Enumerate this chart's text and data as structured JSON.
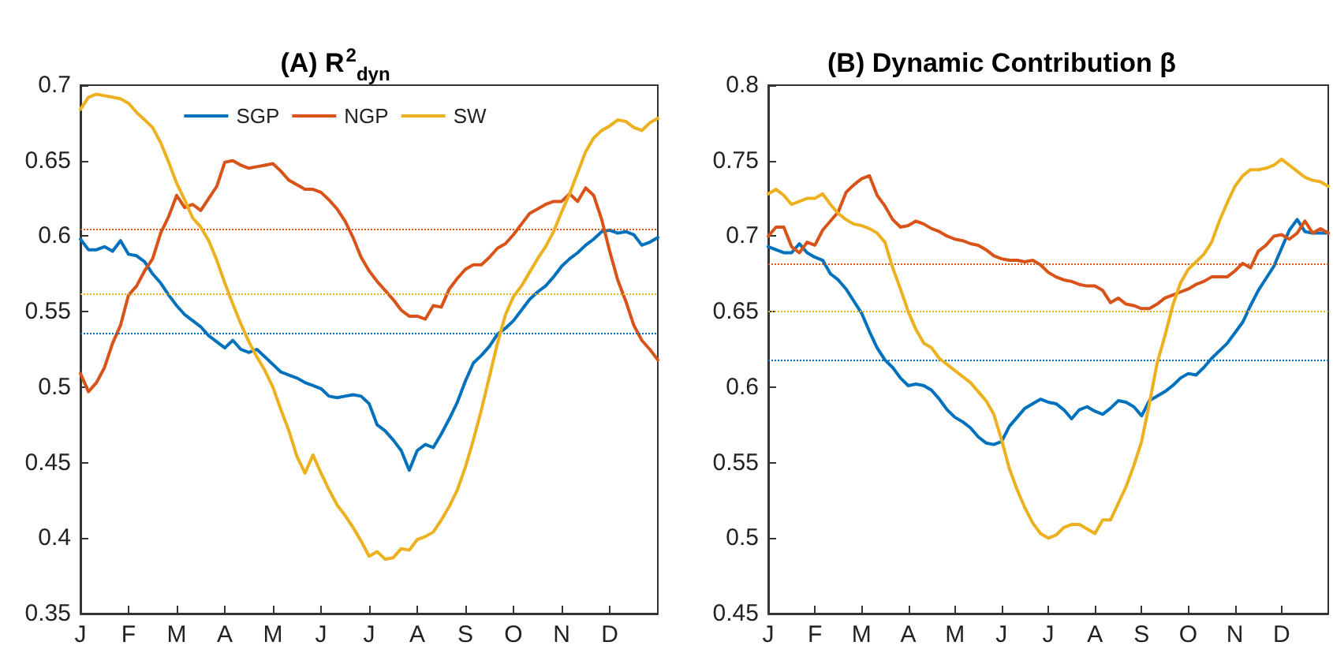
{
  "chart_data": [
    {
      "type": "line",
      "title": "(A) R$^{2}$$_{dyn}$",
      "categories": [
        "J",
        null,
        null,
        null,
        null,
        null,
        "F",
        null,
        null,
        null,
        null,
        null,
        "M",
        null,
        null,
        null,
        null,
        null,
        "A",
        null,
        null,
        null,
        null,
        null,
        "M",
        null,
        null,
        null,
        null,
        null,
        "J",
        null,
        null,
        null,
        null,
        null,
        "J",
        null,
        null,
        null,
        null,
        null,
        "A",
        null,
        null,
        null,
        null,
        null,
        "S",
        null,
        null,
        null,
        null,
        null,
        "O",
        null,
        null,
        null,
        null,
        null,
        "N",
        null,
        null,
        null,
        null,
        null,
        "D",
        null,
        null,
        null,
        null,
        null,
        null
      ],
      "ylim": [
        0.35,
        0.7
      ],
      "yticks": [
        0.35,
        0.4,
        0.45,
        0.5,
        0.55,
        0.6,
        0.65,
        0.7
      ],
      "grid": false,
      "legend": "top",
      "line_style": "solid",
      "ref_lines": [
        {
          "axis": "y",
          "value": 0.605,
          "label": null,
          "color": "#d95319",
          "line_style": "dotted"
        },
        {
          "axis": "y",
          "value": 0.562,
          "label": null,
          "color": "#edb120",
          "line_style": "dotted"
        },
        {
          "axis": "y",
          "value": 0.536,
          "label": null,
          "color": "#0072bd",
          "line_style": "dotted"
        }
      ],
      "series": [
        {
          "name": "SGP",
          "color": "#0072bd",
          "values": [
            0.598,
            0.591,
            0.591,
            0.593,
            0.59,
            0.597,
            0.588,
            0.587,
            0.583,
            0.575,
            0.569,
            0.561,
            0.554,
            0.548,
            0.544,
            0.54,
            0.534,
            0.53,
            0.526,
            0.531,
            0.525,
            0.523,
            0.525,
            0.52,
            0.515,
            0.51,
            0.508,
            0.506,
            0.503,
            0.501,
            0.499,
            0.494,
            0.493,
            0.494,
            0.495,
            0.494,
            0.489,
            0.475,
            0.471,
            0.465,
            0.458,
            0.445,
            0.458,
            0.462,
            0.46,
            0.469,
            0.479,
            0.49,
            0.504,
            0.516,
            0.521,
            0.527,
            0.535,
            0.539,
            0.544,
            0.551,
            0.558,
            0.563,
            0.567,
            0.573,
            0.58,
            0.585,
            0.589,
            0.594,
            0.598,
            0.603,
            0.604,
            0.602,
            0.603,
            0.601,
            0.594,
            0.596,
            0.599
          ]
        },
        {
          "name": "NGP",
          "color": "#d95319",
          "values": [
            0.509,
            0.497,
            0.503,
            0.513,
            0.529,
            0.541,
            0.561,
            0.567,
            0.577,
            0.585,
            0.602,
            0.613,
            0.627,
            0.619,
            0.621,
            0.617,
            0.625,
            0.633,
            0.649,
            0.65,
            0.647,
            0.645,
            0.646,
            0.647,
            0.648,
            0.643,
            0.637,
            0.634,
            0.631,
            0.631,
            0.629,
            0.624,
            0.618,
            0.61,
            0.599,
            0.586,
            0.577,
            0.57,
            0.564,
            0.558,
            0.551,
            0.547,
            0.547,
            0.545,
            0.554,
            0.553,
            0.565,
            0.572,
            0.578,
            0.581,
            0.581,
            0.586,
            0.592,
            0.595,
            0.601,
            0.608,
            0.615,
            0.618,
            0.621,
            0.623,
            0.623,
            0.628,
            0.623,
            0.632,
            0.627,
            0.611,
            0.59,
            0.571,
            0.557,
            0.541,
            0.531,
            0.525,
            0.518
          ]
        },
        {
          "name": "SW",
          "color": "#edb120",
          "values": [
            0.684,
            0.692,
            0.694,
            0.693,
            0.692,
            0.691,
            0.688,
            0.682,
            0.677,
            0.672,
            0.662,
            0.649,
            0.635,
            0.624,
            0.612,
            0.606,
            0.597,
            0.584,
            0.569,
            0.555,
            0.542,
            0.53,
            0.52,
            0.511,
            0.5,
            0.485,
            0.471,
            0.454,
            0.443,
            0.455,
            0.443,
            0.432,
            0.422,
            0.415,
            0.407,
            0.398,
            0.388,
            0.391,
            0.386,
            0.387,
            0.393,
            0.392,
            0.399,
            0.401,
            0.404,
            0.412,
            0.421,
            0.432,
            0.447,
            0.465,
            0.485,
            0.507,
            0.529,
            0.548,
            0.56,
            0.567,
            0.576,
            0.585,
            0.593,
            0.603,
            0.616,
            0.628,
            0.642,
            0.656,
            0.665,
            0.67,
            0.673,
            0.677,
            0.676,
            0.672,
            0.67,
            0.675,
            0.678
          ]
        }
      ]
    },
    {
      "type": "line",
      "title": "(B) Dynamic Contribution β",
      "categories": [
        "J",
        null,
        null,
        null,
        null,
        null,
        "F",
        null,
        null,
        null,
        null,
        null,
        "M",
        null,
        null,
        null,
        null,
        null,
        "A",
        null,
        null,
        null,
        null,
        null,
        "M",
        null,
        null,
        null,
        null,
        null,
        "J",
        null,
        null,
        null,
        null,
        null,
        "J",
        null,
        null,
        null,
        null,
        null,
        "A",
        null,
        null,
        null,
        null,
        null,
        "S",
        null,
        null,
        null,
        null,
        null,
        "O",
        null,
        null,
        null,
        null,
        null,
        "N",
        null,
        null,
        null,
        null,
        null,
        "D",
        null,
        null,
        null,
        null,
        null,
        null
      ],
      "ylim": [
        0.45,
        0.8
      ],
      "yticks": [
        0.45,
        0.5,
        0.55,
        0.6,
        0.65,
        0.7,
        0.75,
        0.8
      ],
      "grid": false,
      "line_style": "solid",
      "ref_lines": [
        {
          "axis": "y",
          "value": 0.682,
          "label": null,
          "color": "#d95319",
          "line_style": "dotted"
        },
        {
          "axis": "y",
          "value": 0.65,
          "label": null,
          "color": "#edb120",
          "line_style": "dotted"
        },
        {
          "axis": "y",
          "value": 0.618,
          "label": null,
          "color": "#0072bd",
          "line_style": "dotted"
        }
      ],
      "series": [
        {
          "color": "#0072bd",
          "values": [
            0.693,
            0.691,
            0.689,
            0.689,
            0.695,
            0.689,
            0.686,
            0.684,
            0.675,
            0.671,
            0.665,
            0.657,
            0.649,
            0.637,
            0.626,
            0.618,
            0.613,
            0.606,
            0.601,
            0.602,
            0.601,
            0.598,
            0.592,
            0.585,
            0.58,
            0.577,
            0.573,
            0.567,
            0.563,
            0.562,
            0.564,
            0.574,
            0.58,
            0.586,
            0.589,
            0.592,
            0.59,
            0.589,
            0.585,
            0.579,
            0.585,
            0.587,
            0.584,
            0.582,
            0.586,
            0.591,
            0.59,
            0.587,
            0.581,
            0.591,
            0.594,
            0.597,
            0.601,
            0.606,
            0.609,
            0.608,
            0.613,
            0.619,
            0.624,
            0.629,
            0.636,
            0.643,
            0.654,
            0.664,
            0.672,
            0.68,
            0.692,
            0.704,
            0.711,
            0.703,
            0.702,
            0.702,
            0.702
          ]
        },
        {
          "color": "#d95319",
          "values": [
            0.7,
            0.706,
            0.706,
            0.693,
            0.689,
            0.696,
            0.694,
            0.704,
            0.71,
            0.716,
            0.729,
            0.734,
            0.738,
            0.74,
            0.727,
            0.72,
            0.711,
            0.706,
            0.707,
            0.71,
            0.708,
            0.705,
            0.703,
            0.7,
            0.698,
            0.697,
            0.695,
            0.694,
            0.691,
            0.687,
            0.685,
            0.684,
            0.684,
            0.683,
            0.684,
            0.681,
            0.676,
            0.673,
            0.671,
            0.67,
            0.668,
            0.667,
            0.667,
            0.664,
            0.656,
            0.659,
            0.655,
            0.654,
            0.652,
            0.652,
            0.655,
            0.659,
            0.661,
            0.663,
            0.665,
            0.668,
            0.67,
            0.673,
            0.673,
            0.673,
            0.677,
            0.682,
            0.679,
            0.69,
            0.694,
            0.7,
            0.701,
            0.698,
            0.702,
            0.71,
            0.702,
            0.705,
            0.702
          ]
        },
        {
          "color": "#edb120",
          "values": [
            0.728,
            0.731,
            0.727,
            0.721,
            0.723,
            0.725,
            0.725,
            0.728,
            0.721,
            0.715,
            0.711,
            0.708,
            0.707,
            0.705,
            0.702,
            0.696,
            0.679,
            0.665,
            0.65,
            0.638,
            0.629,
            0.626,
            0.619,
            0.615,
            0.611,
            0.607,
            0.603,
            0.597,
            0.591,
            0.582,
            0.565,
            0.546,
            0.532,
            0.52,
            0.51,
            0.503,
            0.5,
            0.502,
            0.507,
            0.509,
            0.509,
            0.506,
            0.503,
            0.512,
            0.512,
            0.523,
            0.534,
            0.548,
            0.564,
            0.589,
            0.616,
            0.634,
            0.654,
            0.669,
            0.678,
            0.683,
            0.688,
            0.696,
            0.71,
            0.722,
            0.733,
            0.74,
            0.744,
            0.744,
            0.745,
            0.747,
            0.751,
            0.747,
            0.743,
            0.739,
            0.737,
            0.736,
            0.733
          ]
        }
      ]
    }
  ]
}
